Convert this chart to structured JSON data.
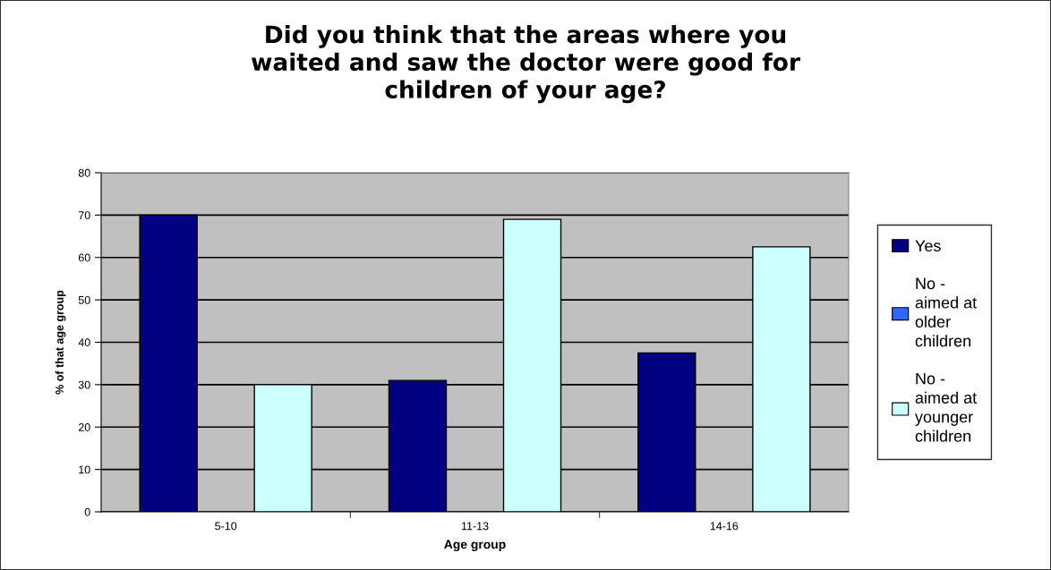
{
  "chart_data": {
    "type": "bar",
    "title": "Did you think that the areas where you\nwaited and saw the doctor were good for\nchildren of your age?",
    "xlabel": "Age group",
    "ylabel": "% of that age group",
    "categories": [
      "5-10",
      "11-13",
      "14-16"
    ],
    "series": [
      {
        "name": "Yes",
        "color": "#000080",
        "values": [
          70,
          31,
          37.5
        ]
      },
      {
        "name": "No -\naimed at\nolder\nchildren",
        "color": "#3366ff",
        "values": [
          null,
          null,
          null
        ]
      },
      {
        "name": "No -\naimed at\nyounger\nchildren",
        "color": "#ccffff",
        "values": [
          30,
          69,
          62.5
        ]
      }
    ],
    "ylim": [
      0,
      80
    ],
    "yticks": [
      0,
      10,
      20,
      30,
      40,
      50,
      60,
      70,
      80
    ],
    "grid": "y",
    "legend": "right"
  }
}
